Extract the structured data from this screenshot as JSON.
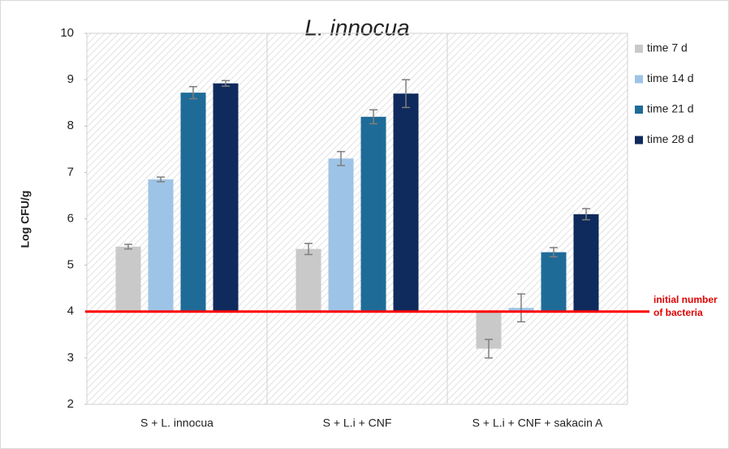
{
  "chart_data": {
    "type": "bar",
    "title": "L. innocua",
    "y_label": "Log CFU/g",
    "categories": [
      "S + L. innocua",
      "S + L.i + CNF",
      "S + L.i + CNF + sakacin A"
    ],
    "series": [
      {
        "name": "time 7 d",
        "color": "#c9c9c9",
        "values": [
          5.4,
          5.35,
          3.2
        ],
        "errors": [
          0.05,
          0.12,
          0.2
        ]
      },
      {
        "name": "time 14 d",
        "color": "#9dc3e6",
        "values": [
          6.85,
          7.3,
          4.08
        ],
        "errors": [
          0.05,
          0.15,
          0.3
        ]
      },
      {
        "name": "time 21 d",
        "color": "#1f6b98",
        "values": [
          8.72,
          8.2,
          5.28
        ],
        "errors": [
          0.13,
          0.15,
          0.1
        ]
      },
      {
        "name": "time 28 d",
        "color": "#0f2a5c",
        "values": [
          8.92,
          8.7,
          6.1
        ],
        "errors": [
          0.06,
          0.3,
          0.12
        ]
      }
    ],
    "ylim": [
      2,
      10
    ],
    "yticks": [
      2,
      3,
      4,
      5,
      6,
      7,
      8,
      9,
      10
    ],
    "grid": false,
    "legend": "right",
    "reference_line": {
      "value": 4,
      "label": "initial number of bacteria",
      "color": "#ff0000"
    }
  }
}
